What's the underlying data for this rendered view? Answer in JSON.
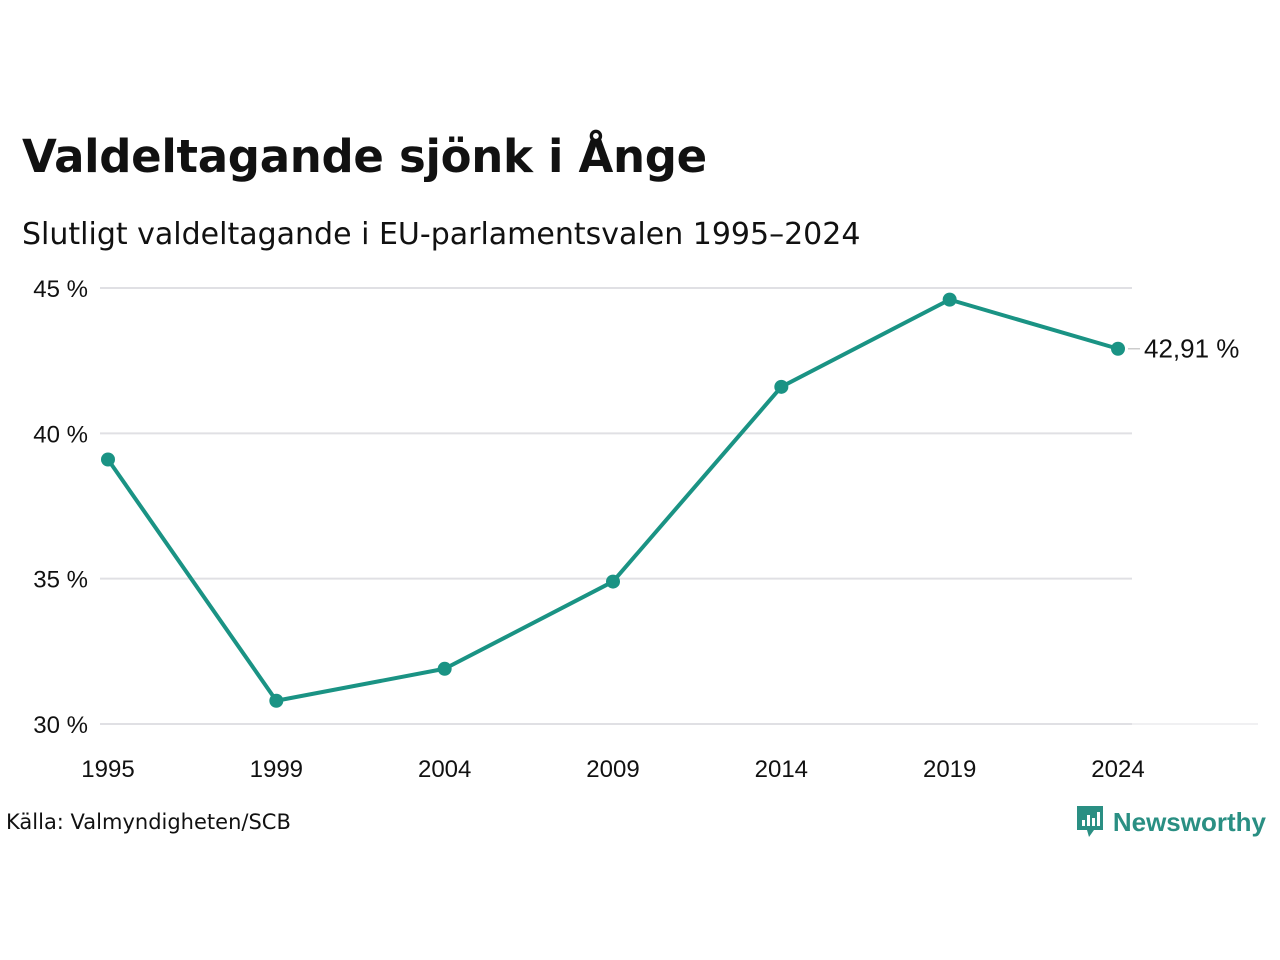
{
  "header": {
    "title": "Valdeltagande sjönk i Ånge",
    "subtitle": "Slutligt valdeltagande i EU-parlamentsvalen 1995–2024"
  },
  "footer": {
    "source": "Källa: Valmyndigheten/SCB",
    "brand": "Newsworthy"
  },
  "colors": {
    "line": "#1a9384",
    "grid": "#e0e0e4",
    "brand": "#2a8f83"
  },
  "chart_data": {
    "type": "line",
    "title": "Valdeltagande sjönk i Ånge",
    "subtitle": "Slutligt valdeltagande i EU-parlamentsvalen 1995–2024",
    "x": [
      "1995",
      "1999",
      "2004",
      "2009",
      "2014",
      "2019",
      "2024"
    ],
    "series": [
      {
        "values": [
          39.1,
          30.8,
          31.9,
          34.9,
          41.6,
          44.6,
          42.91
        ]
      }
    ],
    "ylim": [
      30,
      45
    ],
    "yticks": [
      30,
      35,
      40,
      45
    ],
    "ytick_labels": [
      "30 %",
      "35 %",
      "40 %",
      "45 %"
    ],
    "end_label": "42,91 %",
    "grid": true,
    "legend": "none",
    "xlabel": "",
    "ylabel": ""
  }
}
